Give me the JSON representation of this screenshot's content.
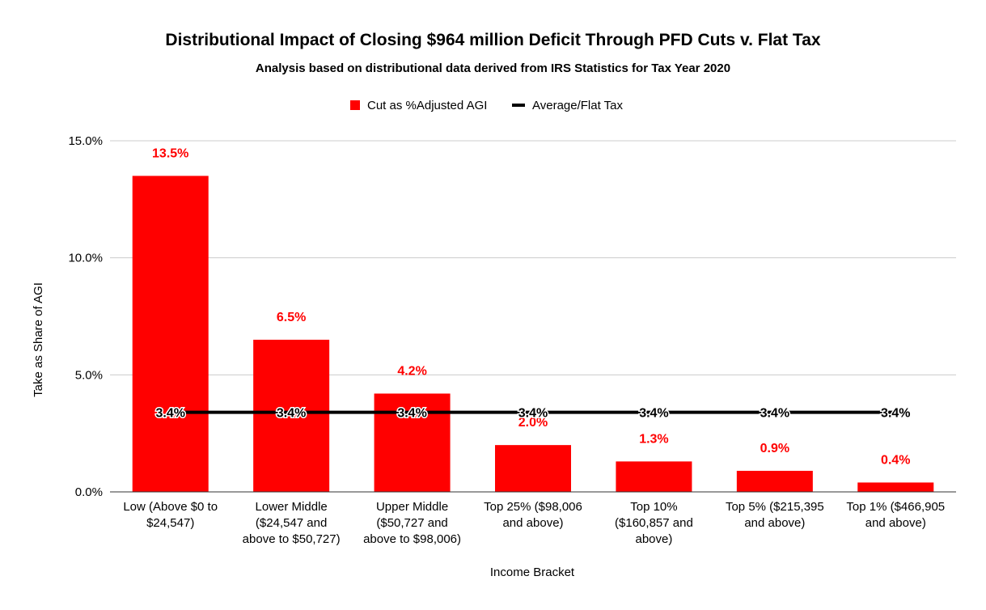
{
  "chart_data": {
    "type": "bar",
    "title": "Distributional Impact of Closing $964 million Deficit Through PFD Cuts v. Flat Tax",
    "subtitle": "Analysis based on distributional data derived from IRS Statistics for Tax Year 2020",
    "xlabel": "Income Bracket",
    "ylabel": "Take as Share of AGI",
    "ylim": [
      0,
      15
    ],
    "y_ticks": [
      {
        "value": 0,
        "label": "0.0%"
      },
      {
        "value": 5,
        "label": "5.0%"
      },
      {
        "value": 10,
        "label": "10.0%"
      },
      {
        "value": 15,
        "label": "15.0%"
      }
    ],
    "grid": true,
    "legend_position": "top-center",
    "categories": [
      [
        "Low (Above $0 to",
        "$24,547)"
      ],
      [
        "Lower Middle",
        "($24,547 and",
        "above to $50,727)"
      ],
      [
        "Upper Middle",
        "($50,727 and",
        "above to $98,006)"
      ],
      [
        "Top 25% ($98,006",
        "and above)"
      ],
      [
        "Top 10%",
        "($160,857 and",
        "above)"
      ],
      [
        "Top 5% ($215,395",
        "and above)"
      ],
      [
        "Top 1% ($466,905",
        "and above)"
      ]
    ],
    "series": [
      {
        "name": "Cut as %Adjusted AGI",
        "kind": "bar",
        "color": "#ff0000",
        "values": [
          13.5,
          6.5,
          4.2,
          2.0,
          1.3,
          0.9,
          0.4
        ],
        "labels": [
          "13.5%",
          "6.5%",
          "4.2%",
          "2.0%",
          "1.3%",
          "0.9%",
          "0.4%"
        ]
      },
      {
        "name": "Average/Flat Tax",
        "kind": "line",
        "color": "#000000",
        "values": [
          3.4,
          3.4,
          3.4,
          3.4,
          3.4,
          3.4,
          3.4
        ],
        "labels": [
          "3.4%",
          "3.4%",
          "3.4%",
          "3.4%",
          "3.4%",
          "3.4%",
          "3.4%"
        ]
      }
    ]
  }
}
